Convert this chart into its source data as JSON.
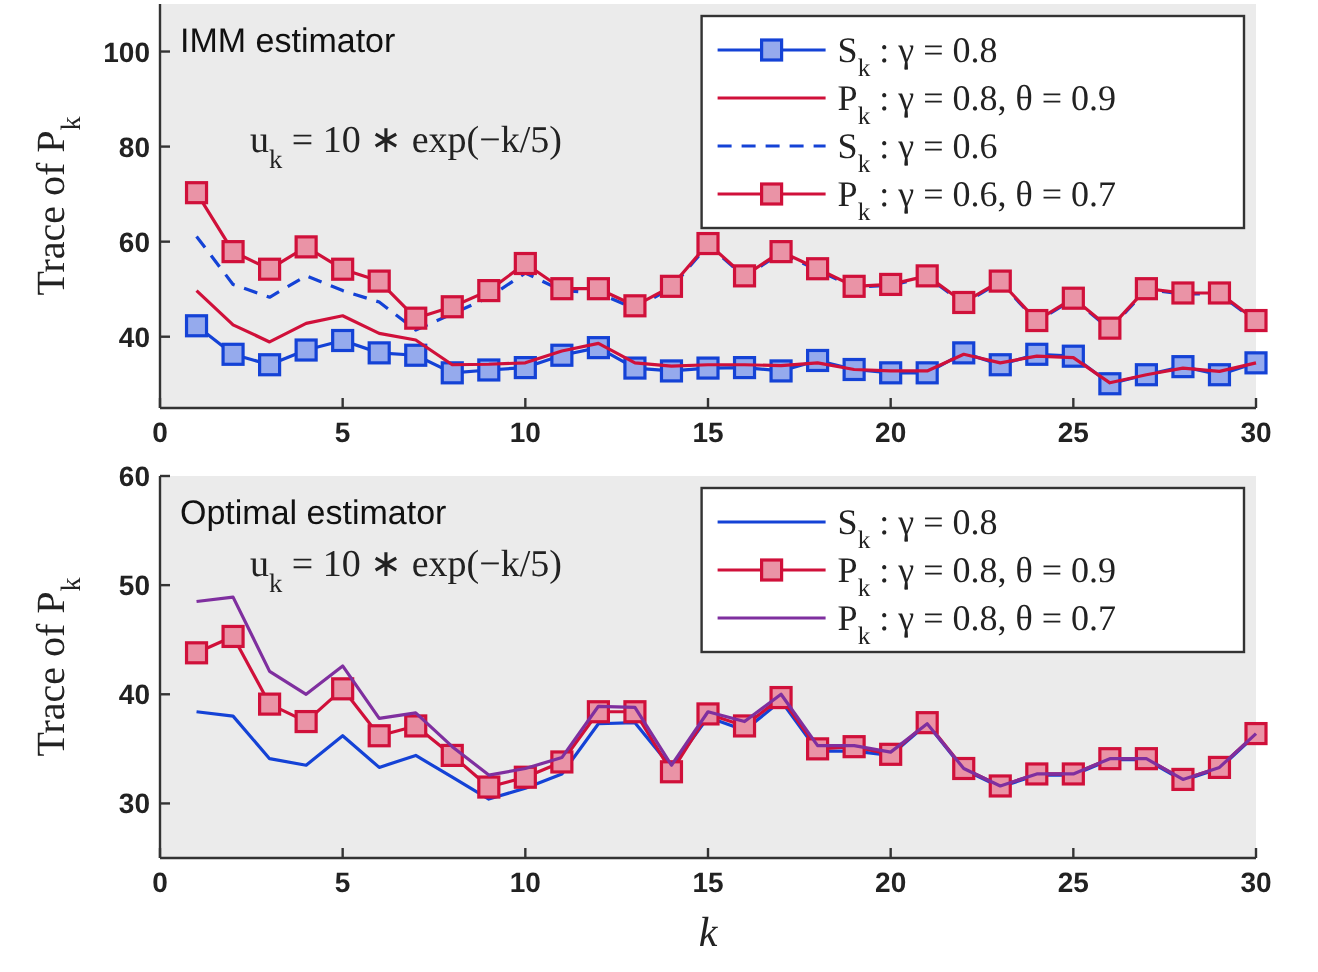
{
  "chart_data": [
    {
      "type": "line",
      "ylabel": "Trace of P$_{k}$",
      "annotations": [
        "IMM estimator",
        "u$_{k}$ = 10 ∗ exp(−k/5)"
      ],
      "x": [
        1,
        2,
        3,
        4,
        5,
        6,
        7,
        8,
        9,
        10,
        11,
        12,
        13,
        14,
        15,
        16,
        17,
        18,
        19,
        20,
        21,
        22,
        23,
        24,
        25,
        26,
        27,
        28,
        29,
        30
      ],
      "xlim": [
        0,
        30
      ],
      "xticks": [
        0,
        5,
        10,
        15,
        20,
        25,
        30
      ],
      "ylim": [
        25,
        110
      ],
      "yticks": [
        40,
        60,
        80,
        100
      ],
      "grid": false,
      "legend": "top right",
      "series": [
        {
          "name": "S$_{k}$ : γ = 0.8",
          "color": "#1442d6",
          "marker": "square",
          "line_style": "solid",
          "values": [
            42.3,
            36.3,
            34.1,
            37.2,
            39.2,
            36.6,
            36.1,
            32.4,
            33,
            33.5,
            36.1,
            37.7,
            33.4,
            32.8,
            33.4,
            33.5,
            32.8,
            35,
            33.1,
            32.4,
            32.4,
            36.6,
            34.1,
            36.3,
            35.9,
            30.1,
            32,
            33.7,
            32,
            34.5
          ]
        },
        {
          "name": "P$_{k}$ : γ = 0.8, θ = 0.9",
          "color": "#d0103a",
          "marker": "none",
          "line_style": "solid",
          "values": [
            49.7,
            42.5,
            38.9,
            42.8,
            44.4,
            40.7,
            39.3,
            34.1,
            34.2,
            34.5,
            37,
            38.6,
            34.5,
            33.8,
            34.1,
            34.1,
            33.9,
            34.5,
            33.1,
            32.8,
            32.8,
            36.3,
            34.5,
            35.9,
            35.6,
            30.3,
            32,
            33.4,
            32.7,
            34.5
          ]
        },
        {
          "name": "S$_{k}$ : γ = 0.6",
          "color": "#1442d6",
          "marker": "none",
          "line_style": "dashed",
          "values": [
            61.1,
            51,
            48.3,
            52.8,
            49.7,
            47.3,
            41.4,
            44.8,
            48.3,
            53.4,
            49.7,
            49.2,
            45.9,
            50.3,
            59.3,
            52.6,
            57.6,
            54,
            50.4,
            50.8,
            52.6,
            47,
            51.5,
            43.2,
            47.9,
            41.6,
            49.9,
            49,
            49,
            43.2
          ]
        },
        {
          "name": "P$_{k}$ : γ = 0.6, θ = 0.7",
          "color": "#d0103a",
          "marker": "square",
          "line_style": "solid",
          "values": [
            70.3,
            57.9,
            54.2,
            58.9,
            54.2,
            51.7,
            43.9,
            46.3,
            49.7,
            55.4,
            50.1,
            50.1,
            46.5,
            50.6,
            59.6,
            52.8,
            57.9,
            54.3,
            50.6,
            51,
            52.8,
            47.2,
            51.7,
            43.4,
            48.1,
            41.8,
            50.1,
            49.2,
            49.2,
            43.4
          ]
        }
      ]
    },
    {
      "type": "line",
      "xlabel": "k",
      "ylabel": "Trace of P$_{k}$",
      "annotations": [
        "Optimal estimator",
        "u$_{k}$ = 10 ∗ exp(−k/5)"
      ],
      "x": [
        1,
        2,
        3,
        4,
        5,
        6,
        7,
        8,
        9,
        10,
        11,
        12,
        13,
        14,
        15,
        16,
        17,
        18,
        19,
        20,
        21,
        22,
        23,
        24,
        25,
        26,
        27,
        28,
        29,
        30
      ],
      "xlim": [
        0,
        30
      ],
      "xticks": [
        0,
        5,
        10,
        15,
        20,
        25,
        30
      ],
      "ylim": [
        25,
        60
      ],
      "yticks": [
        30,
        40,
        50,
        60
      ],
      "grid": false,
      "legend": "top right",
      "series": [
        {
          "name": "S$_{k}$ : γ = 0.8",
          "color": "#1442d6",
          "marker": "none",
          "line_style": "solid",
          "values": [
            38.4,
            38,
            34.1,
            33.5,
            36.2,
            33.3,
            34.4,
            32.4,
            30.4,
            31.4,
            32.7,
            37.3,
            37.4,
            33.3,
            37.9,
            36.7,
            39.4,
            34.8,
            34.8,
            34.4,
            37.3,
            33.1,
            31.5,
            32.6,
            32.6,
            34,
            34,
            32.1,
            33.2,
            36.3
          ]
        },
        {
          "name": "P$_{k}$ : γ = 0.8, θ = 0.9",
          "color": "#d0103a",
          "marker": "square",
          "line_style": "solid",
          "values": [
            43.8,
            45.3,
            39.1,
            37.5,
            40.5,
            36.2,
            37.1,
            34.4,
            31.5,
            32.4,
            33.8,
            38.4,
            38.4,
            32.9,
            38.2,
            37.1,
            39.7,
            35,
            35.2,
            34.5,
            37.4,
            33.2,
            31.6,
            32.7,
            32.7,
            34.1,
            34.1,
            32.2,
            33.3,
            36.4
          ]
        },
        {
          "name": "P$_{k}$ : γ = 0.8, θ = 0.7",
          "color": "#7f2f9f",
          "marker": "none",
          "line_style": "solid",
          "values": [
            48.5,
            48.9,
            42.1,
            40,
            42.6,
            37.8,
            38.3,
            35.2,
            32.6,
            33.2,
            34.2,
            38.9,
            38.8,
            33.5,
            38.4,
            37.5,
            40,
            35.3,
            35.3,
            34.7,
            37.3,
            33.2,
            31.6,
            32.7,
            32.7,
            34.1,
            34.1,
            32.2,
            33.3,
            36.4
          ]
        }
      ]
    }
  ]
}
